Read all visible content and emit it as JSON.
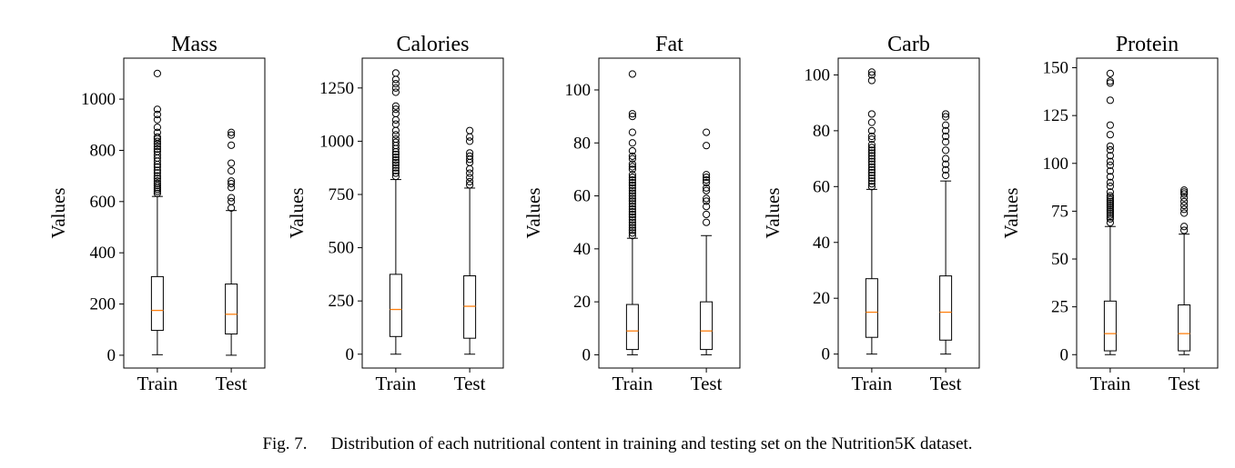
{
  "figure": {
    "caption_label": "Fig. 7.",
    "caption_text": "Distribution of each nutritional content in training and testing set on the Nutrition5K dataset."
  },
  "colors": {
    "median": "#ff7f0e",
    "box": "#000000",
    "background": "#ffffff"
  },
  "chart_data": [
    {
      "type": "box",
      "title": "Mass",
      "ylabel": "Values",
      "categories": [
        "Train",
        "Test"
      ],
      "ylim": [
        -50,
        1160
      ],
      "yticks": [
        0,
        200,
        400,
        600,
        800,
        1000
      ],
      "boxes": [
        {
          "label": "Train",
          "whisker_low": 2,
          "q1": 97,
          "median": 175,
          "q3": 307,
          "whisker_high": 620,
          "outliers": [
            632,
            640,
            648,
            655,
            663,
            671,
            680,
            690,
            700,
            712,
            722,
            735,
            745,
            758,
            770,
            782,
            795,
            805,
            815,
            825,
            835,
            845,
            852,
            870,
            890,
            920,
            940,
            960,
            1100
          ]
        },
        {
          "label": "Test",
          "whisker_low": 0,
          "q1": 83,
          "median": 160,
          "q3": 278,
          "whisker_high": 565,
          "outliers": [
            575,
            600,
            615,
            655,
            670,
            680,
            720,
            750,
            820,
            860,
            870
          ]
        }
      ]
    },
    {
      "type": "box",
      "title": "Calories",
      "ylabel": "Values",
      "categories": [
        "Train",
        "Test"
      ],
      "ylim": [
        -65,
        1390
      ],
      "yticks": [
        0,
        250,
        500,
        750,
        1000,
        1250
      ],
      "boxes": [
        {
          "label": "Train",
          "whisker_low": 0,
          "q1": 83,
          "median": 210,
          "q3": 375,
          "whisker_high": 820,
          "outliers": [
            835,
            850,
            862,
            875,
            888,
            900,
            912,
            925,
            938,
            950,
            965,
            980,
            995,
            1010,
            1030,
            1050,
            1080,
            1100,
            1130,
            1150,
            1165,
            1230,
            1250,
            1270,
            1290,
            1320
          ]
        },
        {
          "label": "Test",
          "whisker_low": 0,
          "q1": 75,
          "median": 225,
          "q3": 368,
          "whisker_high": 780,
          "outliers": [
            795,
            810,
            830,
            850,
            870,
            900,
            915,
            930,
            945,
            1000,
            1020,
            1050
          ]
        }
      ]
    },
    {
      "type": "box",
      "title": "Fat",
      "ylabel": "Values",
      "categories": [
        "Train",
        "Test"
      ],
      "ylim": [
        -5,
        112
      ],
      "yticks": [
        0,
        20,
        40,
        60,
        80,
        100
      ],
      "boxes": [
        {
          "label": "Train",
          "whisker_low": 0,
          "q1": 2,
          "median": 9,
          "q3": 19,
          "whisker_high": 44,
          "outliers": [
            45,
            46,
            47,
            48,
            49,
            50,
            51,
            52,
            53,
            54,
            55,
            56,
            57,
            58,
            59,
            60,
            61,
            62,
            63,
            64,
            65,
            66,
            67,
            68,
            70,
            71,
            72,
            74,
            75,
            77,
            80,
            84,
            90,
            91,
            106
          ]
        },
        {
          "label": "Test",
          "whisker_low": 0,
          "q1": 2,
          "median": 9,
          "q3": 20,
          "whisker_high": 45,
          "outliers": [
            50,
            53,
            56,
            58,
            59,
            62,
            63,
            65,
            66,
            67,
            68,
            79,
            84
          ]
        }
      ]
    },
    {
      "type": "box",
      "title": "Carb",
      "ylabel": "Values",
      "categories": [
        "Train",
        "Test"
      ],
      "ylim": [
        -5,
        106
      ],
      "yticks": [
        0,
        20,
        40,
        60,
        80,
        100
      ],
      "boxes": [
        {
          "label": "Train",
          "whisker_low": 0,
          "q1": 6,
          "median": 15,
          "q3": 27,
          "whisker_high": 59,
          "outliers": [
            60,
            61,
            62,
            63,
            64,
            65,
            66,
            67,
            68,
            69,
            70,
            71,
            72,
            73,
            74,
            75,
            77,
            78,
            80,
            83,
            86,
            98,
            100,
            101
          ]
        },
        {
          "label": "Test",
          "whisker_low": 0,
          "q1": 5,
          "median": 15,
          "q3": 28,
          "whisker_high": 62,
          "outliers": [
            64,
            66,
            68,
            70,
            73,
            76,
            78,
            80,
            82,
            85,
            86
          ]
        }
      ]
    },
    {
      "type": "box",
      "title": "Protein",
      "ylabel": "Values",
      "categories": [
        "Train",
        "Test"
      ],
      "ylim": [
        -7,
        155
      ],
      "yticks": [
        0,
        25,
        50,
        75,
        100,
        125,
        150
      ],
      "boxes": [
        {
          "label": "Train",
          "whisker_low": 0,
          "q1": 2,
          "median": 11,
          "q3": 28,
          "whisker_high": 67,
          "outliers": [
            69,
            71,
            72,
            73,
            74,
            75,
            76,
            77,
            78,
            79,
            80,
            81,
            82,
            83,
            85,
            88,
            90,
            93,
            96,
            99,
            101,
            104,
            107,
            109,
            115,
            120,
            133,
            142,
            143,
            147
          ]
        },
        {
          "label": "Test",
          "whisker_low": 0,
          "q1": 2,
          "median": 11,
          "q3": 26,
          "whisker_high": 63,
          "outliers": [
            65,
            67,
            74,
            76,
            78,
            80,
            82,
            84,
            85,
            86
          ]
        }
      ]
    }
  ]
}
